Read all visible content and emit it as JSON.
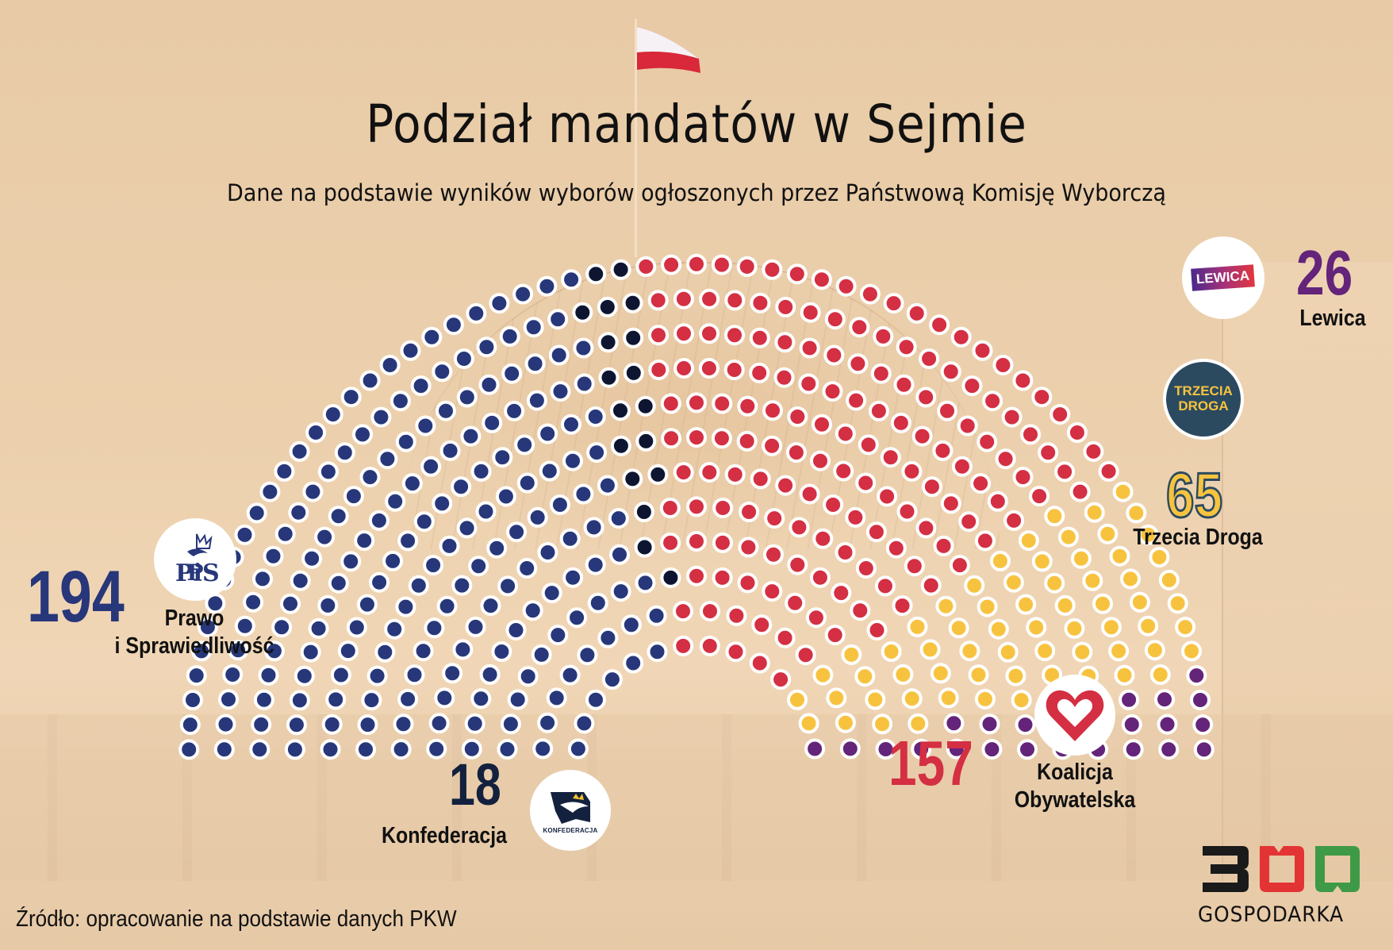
{
  "header": {
    "title": "Podział mandatów w Sejmie",
    "subtitle": "Dane na podstawie wyników wyborów ogłoszonych przez Państwową Komisję Wyborczą"
  },
  "parties": {
    "pis": {
      "count": "194",
      "name_line1": "Prawo",
      "name_line2": "i Sprawiedliwość",
      "logo_text": "PiS",
      "color": "#27377a"
    },
    "konfederacja": {
      "count": "18",
      "name": "Konfederacja",
      "logo_text": "KONFEDERACJA",
      "color": "#0d1530"
    },
    "ko": {
      "count": "157",
      "name_line1": "Koalicja",
      "name_line2": "Obywatelska",
      "color": "#d42f42"
    },
    "trzecia_droga": {
      "count": "65",
      "name": "Trzecia Droga",
      "logo_line1": "TRZECIA",
      "logo_line2": "DROGA",
      "color": "#f7c33f",
      "logo_bg": "#2b4a60"
    },
    "lewica": {
      "count": "26",
      "name": "Lewica",
      "logo_text": "LEWICA",
      "color": "#63247a"
    }
  },
  "footer": {
    "source": "Źródło: opracowanie na podstawie danych PKW",
    "brand_number": "300",
    "brand_word": "GOSPODARKA"
  },
  "chart_data": {
    "type": "parliament",
    "title": "Podział mandatów w Sejmie",
    "subtitle": "Dane na podstawie wyników wyborów ogłoszonych przez Państwową Komisję Wyborczą",
    "total_seats": 460,
    "categories": [
      "Prawo i Sprawiedliwość",
      "Konfederacja",
      "Koalicja Obywatelska",
      "Trzecia Droga",
      "Lewica"
    ],
    "values": [
      194,
      18,
      157,
      65,
      26
    ],
    "colors": [
      "#27377a",
      "#0d1530",
      "#d42f42",
      "#f7c33f",
      "#63247a"
    ],
    "order_left_to_right": [
      "Prawo i Sprawiedliwość",
      "Konfederacja",
      "Koalicja Obywatelska",
      "Trzecia Droga",
      "Lewica"
    ],
    "source": "Źródło: opracowanie na podstawie danych PKW"
  }
}
